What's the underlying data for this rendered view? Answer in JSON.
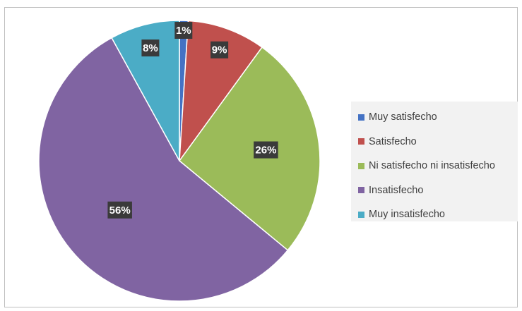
{
  "chart_data": {
    "type": "pie",
    "categories": [
      "Muy satisfecho",
      "Satisfecho",
      "Ni satisfecho ni insatisfecho",
      "Insatisfecho",
      "Muy insatisfecho"
    ],
    "values": [
      1,
      9,
      26,
      56,
      8
    ],
    "data_labels": [
      "1%",
      "9%",
      "26%",
      "56%",
      "8%"
    ],
    "colors": [
      "#4472c4",
      "#c0504d",
      "#9bbb59",
      "#8064a2",
      "#4bacc6"
    ],
    "legend_position": "right",
    "start_angle": "top",
    "direction": "clockwise"
  }
}
